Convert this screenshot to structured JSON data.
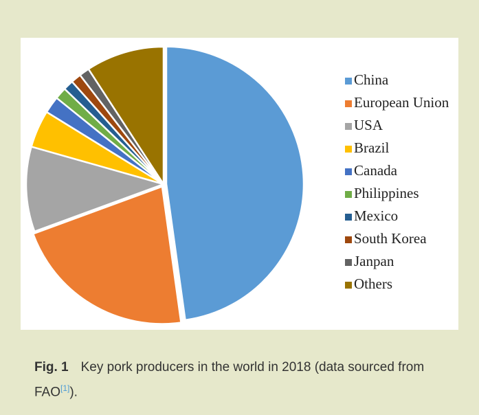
{
  "chart_data": {
    "type": "pie",
    "categories": [
      "China",
      "European Union",
      "USA",
      "Brazil",
      "Canada",
      "Philippines",
      "Mexico",
      "South Korea",
      "Janpan",
      "Others"
    ],
    "values": [
      47.8,
      21.6,
      10,
      4.4,
      2,
      1.4,
      1.2,
      1.2,
      1.2,
      9.2
    ],
    "colors": [
      "#5b9bd5",
      "#ed7d31",
      "#a5a5a5",
      "#ffc000",
      "#4472c4",
      "#70ad47",
      "#255e91",
      "#9e480e",
      "#636363",
      "#997300"
    ],
    "legend": "right"
  },
  "caption": {
    "label": "Fig. 1",
    "text": "Key pork producers in the world in 2018 (data sourced from FAO",
    "ref": "[1]",
    "end": ")."
  }
}
